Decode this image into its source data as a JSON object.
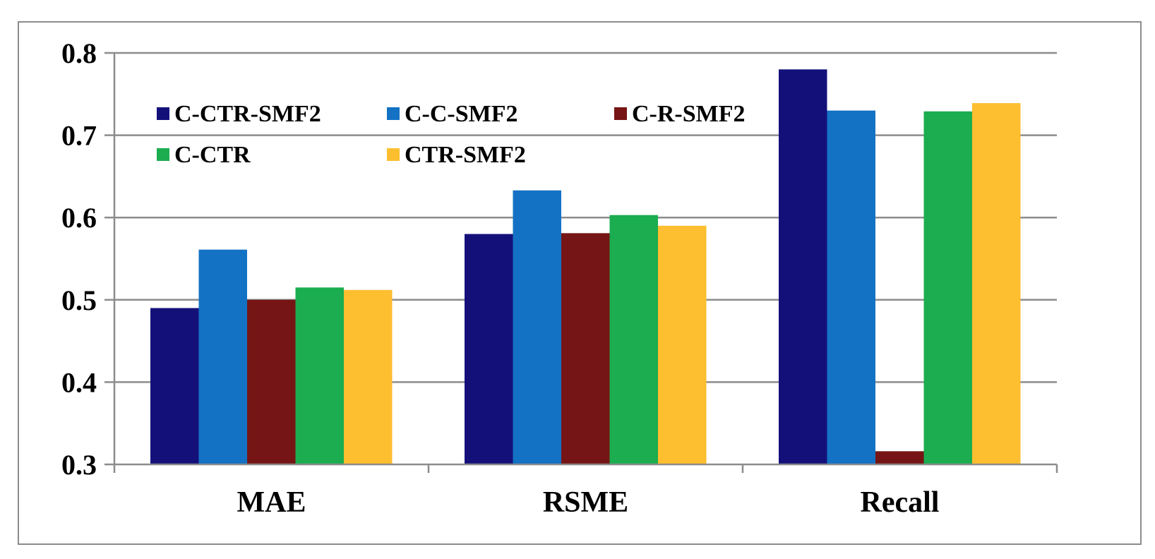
{
  "chart_data": {
    "type": "bar",
    "title": "",
    "xlabel": "",
    "ylabel": "",
    "categories": [
      "MAE",
      "RSME",
      "Recall"
    ],
    "series": [
      {
        "name": "C-CTR-SMF2",
        "color": "#14107a",
        "values": [
          0.49,
          0.58,
          0.78
        ]
      },
      {
        "name": "C-C-SMF2",
        "color": "#1472c4",
        "values": [
          0.561,
          0.633,
          0.73
        ]
      },
      {
        "name": "C-R-SMF2",
        "color": "#761515",
        "values": [
          0.5,
          0.581,
          0.316
        ]
      },
      {
        "name": "C-CTR",
        "color": "#1bad50",
        "values": [
          0.515,
          0.603,
          0.729
        ]
      },
      {
        "name": "CTR-SMF2",
        "color": "#fdbe2f",
        "values": [
          0.512,
          0.59,
          0.739
        ]
      }
    ],
    "ylim": [
      0.3,
      0.8
    ],
    "yticks": [
      "0.3",
      "0.4",
      "0.5",
      "0.6",
      "0.7",
      "0.8"
    ],
    "grid": true,
    "gridline_color": "#8c8c8c",
    "legend": "top-left, inside plot"
  }
}
